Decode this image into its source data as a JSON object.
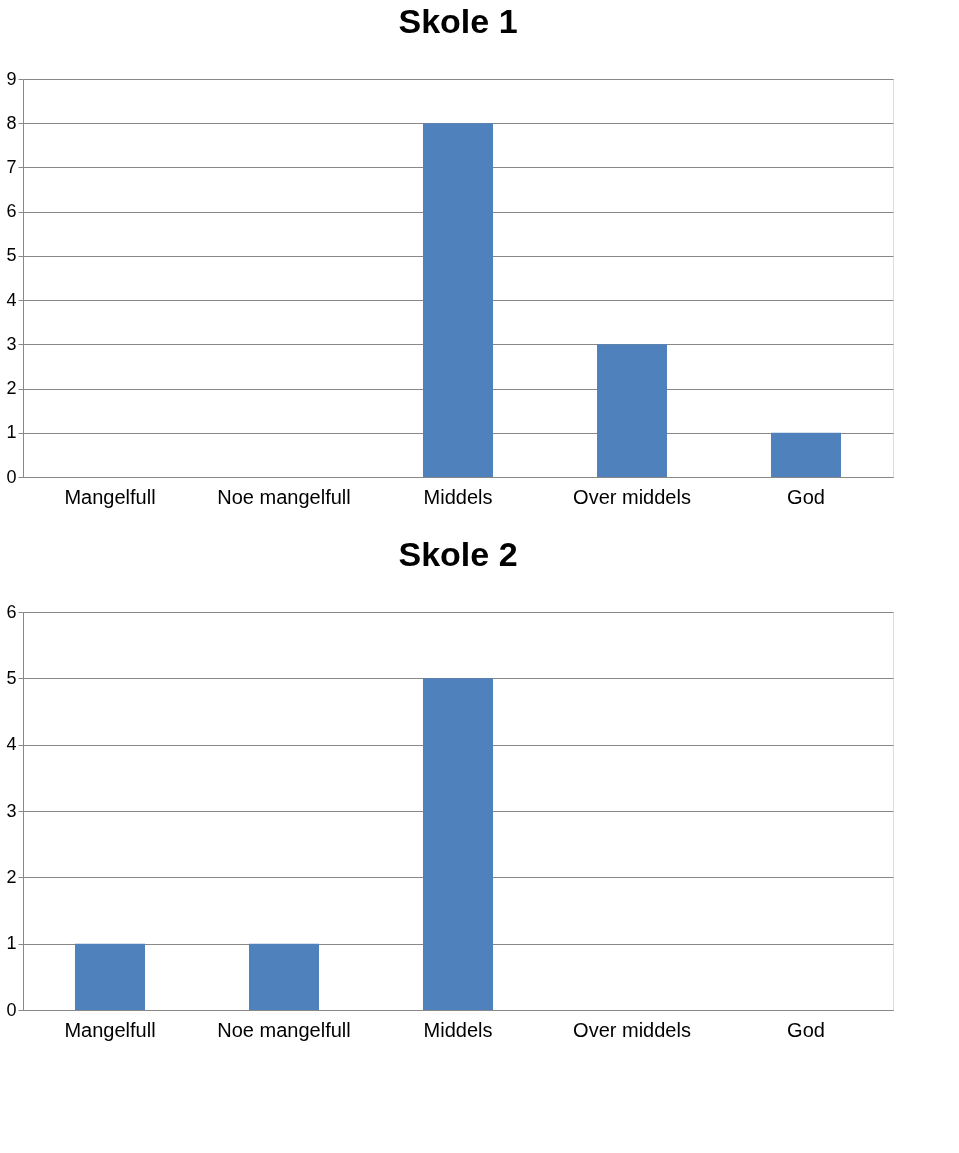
{
  "chart_data": [
    {
      "type": "bar",
      "title": "Skole 1",
      "categories": [
        "Mangelfull",
        "Noe mangelfull",
        "Middels",
        "Over middels",
        "God"
      ],
      "values": [
        0,
        0,
        8,
        3,
        1
      ],
      "color": "#4f81bd",
      "ylim": [
        0,
        9
      ],
      "yticks": [
        0,
        1,
        2,
        3,
        4,
        5,
        6,
        7,
        8,
        9
      ],
      "grid": "y"
    },
    {
      "type": "bar",
      "title": "Skole 2",
      "categories": [
        "Mangelfull",
        "Noe mangelfull",
        "Middels",
        "Over middels",
        "God"
      ],
      "values": [
        1,
        1,
        5,
        0,
        0
      ],
      "color": "#4f81bd",
      "ylim": [
        0,
        6
      ],
      "yticks": [
        0,
        1,
        2,
        3,
        4,
        5,
        6
      ],
      "grid": "y"
    }
  ]
}
